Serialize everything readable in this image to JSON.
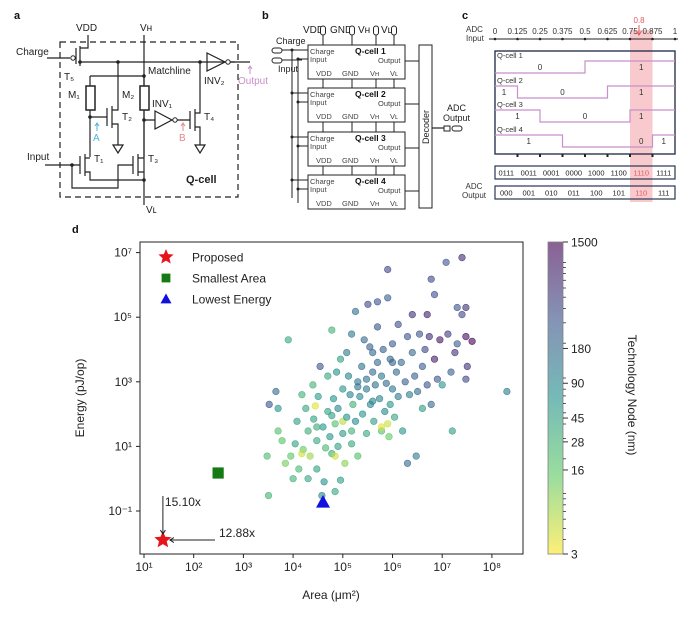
{
  "panel_a": {
    "label": "a",
    "vdd": "VDD",
    "vh": "Vʜ",
    "vl": "Vʟ",
    "charge": "Charge",
    "input": "Input",
    "matchline": "Matchline",
    "t1": "T₁",
    "t2": "T₂",
    "t3": "T₃",
    "t4": "T₄",
    "t5": "T₅",
    "m1": "M₁",
    "m2": "M₂",
    "inv1": "INV₁",
    "inv2": "INV₂",
    "node_a": "A",
    "node_b": "B",
    "output": "Output",
    "cell": "Q-cell",
    "colors": {
      "node_a": "#4fb3d9",
      "node_b": "#e8848c",
      "output": "#c98fc9"
    }
  },
  "panel_b": {
    "label": "b",
    "top_pins": [
      "VDD",
      "GND",
      "Vʜ",
      "Vʟ"
    ],
    "charge": "Charge",
    "input": "Input",
    "port": {
      "charge": "Charge",
      "input": "Input",
      "output": "Output",
      "vdd": "VDD",
      "gnd": "GND",
      "vh": "Vʜ",
      "vl": "Vʟ"
    },
    "cells": [
      "Q-cell 1",
      "Q-cell 2",
      "Q-cell 3",
      "Q-cell 4"
    ],
    "decoder": "Decoder",
    "adc_output": [
      "ADC",
      "Output"
    ]
  },
  "panel_c": {
    "label": "c",
    "axis_label": [
      "ADC",
      "Input"
    ],
    "ticks": [
      "0",
      "0.125",
      "0.25",
      "0.375",
      "0.5",
      "0.625",
      "0.75",
      "0.875",
      "1"
    ],
    "marker": "0.8",
    "highlight_interval": 6,
    "highlight_color": "#f4a7ad",
    "marker_color": "#e05a63",
    "wave_color": "#c98fc9",
    "rows": [
      {
        "name": "Q-cell 1",
        "levels": [
          0,
          0,
          0,
          0,
          1,
          1,
          1,
          1
        ],
        "values": [
          {
            "text": "0",
            "at": 0.25
          },
          {
            "text": "1",
            "at": 0.8125
          }
        ]
      },
      {
        "name": "Q-cell 2",
        "levels": [
          1,
          0,
          0,
          0,
          0,
          1,
          1,
          1
        ],
        "values": [
          {
            "text": "1",
            "at": 0.05
          },
          {
            "text": "0",
            "at": 0.375
          },
          {
            "text": "1",
            "at": 0.8125
          }
        ]
      },
      {
        "name": "Q-cell 3",
        "levels": [
          1,
          1,
          0,
          0,
          0,
          0,
          1,
          1
        ],
        "values": [
          {
            "text": "1",
            "at": 0.125
          },
          {
            "text": "0",
            "at": 0.5
          },
          {
            "text": "1",
            "at": 0.8125
          }
        ]
      },
      {
        "name": "Q-cell 4",
        "levels": [
          1,
          1,
          1,
          0,
          0,
          0,
          0,
          1
        ],
        "values": [
          {
            "text": "1",
            "at": 0.1875
          },
          {
            "text": "0",
            "at": 0.8125
          },
          {
            "text": "1",
            "at": 0.9375
          }
        ]
      }
    ],
    "codes": [
      "0111",
      "0011",
      "0001",
      "0000",
      "1000",
      "1100",
      "1110",
      "1111"
    ],
    "output_label": [
      "ADC",
      "Output"
    ],
    "outputs": [
      "000",
      "001",
      "010",
      "011",
      "100",
      "101",
      "110",
      "111"
    ]
  },
  "panel_d": {
    "label": "d"
  },
  "chart_data": {
    "type": "scatter",
    "xlabel": "Area (μm²)",
    "ylabel": "Energy (pJ/op)",
    "x_scale": "log",
    "y_scale": "log",
    "xlim": [
      8,
      400000000.0
    ],
    "ylim": [
      0.0047,
      21000000.0
    ],
    "x_ticks": [
      {
        "v": 10.0,
        "label": "10¹"
      },
      {
        "v": 100.0,
        "label": "10²"
      },
      {
        "v": 1000.0,
        "label": "10³"
      },
      {
        "v": 10000.0,
        "label": "10⁴"
      },
      {
        "v": 100000.0,
        "label": "10⁵"
      },
      {
        "v": 1000000.0,
        "label": "10⁶"
      },
      {
        "v": 10000000.0,
        "label": "10⁷"
      },
      {
        "v": 100000000.0,
        "label": "10⁸"
      }
    ],
    "y_ticks": [
      {
        "v": 10000000.0,
        "label": "10⁷"
      },
      {
        "v": 100000.0,
        "label": "10⁵"
      },
      {
        "v": 1000.0,
        "label": "10³"
      },
      {
        "v": 10.0,
        "label": "10¹"
      },
      {
        "v": 0.1,
        "label": "10⁻¹"
      }
    ],
    "grid": false,
    "legend_position": "top-left",
    "legend": [
      {
        "name": "Proposed",
        "marker": "star",
        "color": "#e8141b"
      },
      {
        "name": "Smallest Area",
        "marker": "square",
        "color": "#147a14"
      },
      {
        "name": "Lowest Energy",
        "marker": "triangle",
        "color": "#1010e0"
      }
    ],
    "highlight_points": {
      "proposed": {
        "area": 24,
        "energy": 0.0126
      },
      "smallest_area": {
        "area": 310,
        "energy": 1.5
      },
      "lowest_energy": {
        "area": 40000,
        "energy": 0.19
      }
    },
    "annotations": [
      {
        "text": "15.10x",
        "direction": "vertical"
      },
      {
        "text": "12.88x",
        "direction": "horizontal"
      }
    ],
    "colorbar": {
      "label": "Technology Node (nm)",
      "scale": "log",
      "range": [
        3,
        1500
      ],
      "ticks": [
        "1500",
        "180",
        "90",
        "45",
        "28",
        "16",
        "3"
      ],
      "tick_values": [
        1500,
        180,
        90,
        45,
        28,
        16,
        3
      ],
      "colormap": [
        "#fde725",
        "#5ec962",
        "#21918c",
        "#3b528b",
        "#440154"
      ]
    },
    "points_columns": [
      "area",
      "energy",
      "technology_node"
    ],
    "points": [
      [
        3000.0,
        5,
        22
      ],
      [
        3200.0,
        0.3,
        28
      ],
      [
        3300.0,
        200,
        300
      ],
      [
        4500.0,
        500,
        180
      ],
      [
        5000.0,
        150,
        60
      ],
      [
        5000.0,
        30,
        20
      ],
      [
        6000.0,
        15,
        18
      ],
      [
        7000.0,
        3,
        12
      ],
      [
        8000.0,
        20000.0,
        40
      ],
      [
        9000.0,
        5,
        16
      ],
      [
        10000.0,
        1,
        30
      ],
      [
        11000.0,
        12,
        45
      ],
      [
        12000.0,
        60,
        50
      ],
      [
        13000.0,
        2,
        25
      ],
      [
        15000.0,
        400,
        30
      ],
      [
        16000.0,
        8,
        14
      ],
      [
        18000.0,
        150,
        40
      ],
      [
        20000.0,
        30,
        35
      ],
      [
        20000.0,
        1,
        40
      ],
      [
        22000.0,
        5,
        8
      ],
      [
        25000.0,
        800,
        28
      ],
      [
        26000.0,
        70,
        45
      ],
      [
        28000.0,
        180,
        4
      ],
      [
        30000.0,
        15,
        40
      ],
      [
        30000.0,
        2,
        45
      ],
      [
        32000.0,
        350,
        55
      ],
      [
        35000.0,
        3000.0,
        300
      ],
      [
        38000.0,
        0.3,
        90
      ],
      [
        40000.0,
        40,
        60
      ],
      [
        42000.0,
        0.8,
        70
      ],
      [
        45000.0,
        9,
        25
      ],
      [
        50000.0,
        120,
        45
      ],
      [
        50000.0,
        1500,
        40
      ],
      [
        55000.0,
        20,
        60
      ],
      [
        60000.0,
        40000.0,
        30
      ],
      [
        60000.0,
        6,
        35
      ],
      [
        65000.0,
        300,
        65
      ],
      [
        70000.0,
        0.4,
        40
      ],
      [
        70000.0,
        50,
        20
      ],
      [
        70000.0,
        5,
        5
      ],
      [
        75000.0,
        2000.0,
        70
      ],
      [
        80000.0,
        10,
        45
      ],
      [
        80000.0,
        150,
        90
      ],
      [
        90000.0,
        5000.0,
        50
      ],
      [
        90000.0,
        0.9,
        50
      ],
      [
        100000.0,
        25,
        55
      ],
      [
        100000.0,
        600,
        60
      ],
      [
        100000.0,
        60,
        6
      ],
      [
        110000.0,
        3,
        10
      ],
      [
        120000.0,
        80,
        65
      ],
      [
        120000.0,
        8000.0,
        130
      ],
      [
        130000.0,
        1500,
        90
      ],
      [
        140000.0,
        400,
        100
      ],
      [
        150000.0,
        12,
        40
      ],
      [
        150000.0,
        30000.0,
        130
      ],
      [
        160000.0,
        200,
        30
      ],
      [
        180000.0,
        60,
        80
      ],
      [
        180000.0,
        150000.0,
        150
      ],
      [
        200000.0,
        1000.0,
        130
      ],
      [
        200000.0,
        5,
        20
      ],
      [
        220000.0,
        350,
        90
      ],
      [
        240000.0,
        3000.0,
        150
      ],
      [
        250000.0,
        100,
        60
      ],
      [
        270000.0,
        20000.0,
        180
      ],
      [
        300000.0,
        600,
        130
      ],
      [
        300000.0,
        25,
        40
      ],
      [
        320000.0,
        250000.0,
        400
      ],
      [
        350000.0,
        12000.0,
        250
      ],
      [
        360000.0,
        200,
        90
      ],
      [
        400000.0,
        2000.0,
        180
      ],
      [
        400000.0,
        8000.0,
        200
      ],
      [
        420000.0,
        60,
        50
      ],
      [
        450000.0,
        800,
        150
      ],
      [
        500000.0,
        50000.0,
        300
      ],
      [
        500000.0,
        4000.0,
        180
      ],
      [
        500000.0,
        300000.0,
        300
      ],
      [
        550000.0,
        300,
        100
      ],
      [
        600000.0,
        1500.0,
        130
      ],
      [
        600000.0,
        30,
        20
      ],
      [
        600000.0,
        40,
        4
      ],
      [
        650000.0,
        10000.0,
        250
      ],
      [
        700000.0,
        120,
        90
      ],
      [
        750000.0,
        900,
        200
      ],
      [
        800000.0,
        3000000.0,
        400
      ],
      [
        800000.0,
        400000.0,
        250
      ],
      [
        800000.0,
        50,
        5
      ],
      [
        850000.0,
        20,
        14
      ],
      [
        900000.0,
        5000.0,
        200
      ],
      [
        900000.0,
        200,
        60
      ],
      [
        1000000.0,
        15000.0,
        250
      ],
      [
        1000000.0,
        600,
        130
      ],
      [
        1100000.0,
        80,
        40
      ],
      [
        1200000.0,
        2000.0,
        200
      ],
      [
        1300000.0,
        60000.0,
        350
      ],
      [
        1300000.0,
        350,
        130
      ],
      [
        1500000.0,
        4000.0,
        180
      ],
      [
        1600000.0,
        30,
        60
      ],
      [
        1800000.0,
        1000.0,
        250
      ],
      [
        2000000.0,
        25000.0,
        300
      ],
      [
        2000000.0,
        3,
        200
      ],
      [
        2200000.0,
        400,
        110
      ],
      [
        2500000.0,
        120000.0,
        600
      ],
      [
        2500000.0,
        8000.0,
        200
      ],
      [
        2800000.0,
        1500.0,
        220
      ],
      [
        3000000.0,
        5,
        120
      ],
      [
        3200000.0,
        500,
        200
      ],
      [
        3500000.0,
        30000.0,
        300
      ],
      [
        4000000.0,
        150,
        50
      ],
      [
        4000000.0,
        3000.0,
        250
      ],
      [
        4500000.0,
        10000.0,
        400
      ],
      [
        5000000.0,
        120000.0,
        800
      ],
      [
        5000000.0,
        800,
        300
      ],
      [
        5500000.0,
        25000.0,
        700
      ],
      [
        6000000.0,
        1500000.0,
        400
      ],
      [
        6000000.0,
        200,
        200
      ],
      [
        7000000.0,
        500000.0,
        350
      ],
      [
        7000000.0,
        5000.0,
        900
      ],
      [
        8000000.0,
        1200.0,
        300
      ],
      [
        9000000.0,
        20000.0,
        1000
      ],
      [
        10000000.0,
        800,
        60
      ],
      [
        12000000.0,
        5000000.0,
        300
      ],
      [
        13000000.0,
        30000.0,
        500
      ],
      [
        15000000.0,
        2000.0,
        250
      ],
      [
        16000000.0,
        30,
        50
      ],
      [
        18000000.0,
        8000.0,
        600
      ],
      [
        20000000.0,
        15000.0,
        250
      ],
      [
        20000000.0,
        200000.0,
        300
      ],
      [
        25000000.0,
        120000.0,
        400
      ],
      [
        25000000.0,
        7000000.0,
        700
      ],
      [
        30000000.0,
        200000.0,
        600
      ],
      [
        30000000.0,
        25000.0,
        1200
      ],
      [
        30000000.0,
        1200.0,
        400
      ],
      [
        32000000.0,
        3000.0,
        600
      ],
      [
        40000000.0,
        18000.0,
        1500
      ],
      [
        200000000.0,
        500,
        120
      ],
      [
        15000.0,
        6,
        5
      ],
      [
        300000.0,
        1200,
        150
      ],
      [
        200000.0,
        700,
        140
      ],
      [
        60000.0,
        90,
        50
      ],
      [
        150000.0,
        30,
        30
      ],
      [
        400000.0,
        250,
        100
      ],
      [
        1000000.0,
        4000.0,
        220
      ],
      [
        30000.0,
        40,
        35
      ]
    ]
  }
}
